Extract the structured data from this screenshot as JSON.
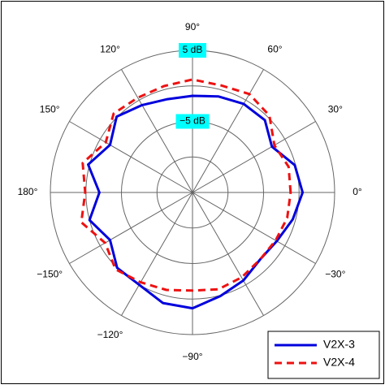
{
  "chart_data": {
    "type": "polar",
    "theta": [
      0,
      15,
      30,
      45,
      60,
      75,
      90,
      105,
      120,
      135,
      150,
      165,
      180,
      195,
      210,
      225,
      240,
      255,
      270,
      285,
      300,
      315,
      330,
      345
    ],
    "series": [
      {
        "name": "V2X-3",
        "color": "#0000dd",
        "dash": "solid",
        "values": [
          0.5,
          -0.1,
          -2.1,
          -0.6,
          -0.6,
          -1.0,
          -1.4,
          -1.4,
          -0.8,
          0.1,
          -1.6,
          0.2,
          -1.9,
          0.0,
          -1.6,
          0.0,
          0.0,
          1.1,
          1.3,
          0.1,
          -0.7,
          -1.6,
          -1.3,
          -0.4
        ]
      },
      {
        "name": "V2X-4",
        "color": "#ee1111",
        "dash": "dashed",
        "values": [
          -1.2,
          -1.0,
          -1.7,
          0.3,
          1.0,
          0.6,
          0.9,
          0.5,
          0.4,
          0.7,
          -0.9,
          1.0,
          0.1,
          1.2,
          -0.8,
          0.3,
          -0.4,
          -0.8,
          -1.2,
          -0.9,
          -1.2,
          -1.6,
          -1.5,
          -1.2
        ]
      }
    ],
    "rlim": [
      -15,
      5
    ],
    "rticks": [
      {
        "value": -10,
        "label": null
      },
      {
        "value": -5,
        "label": "−5 dB"
      },
      {
        "value": 0,
        "label": null
      },
      {
        "value": 5,
        "label": "5 dB"
      }
    ],
    "thetaticks": [
      {
        "value": 0,
        "label": "0°"
      },
      {
        "value": 30,
        "label": "30°"
      },
      {
        "value": 60,
        "label": "60°"
      },
      {
        "value": 90,
        "label": "90°"
      },
      {
        "value": 120,
        "label": "120°"
      },
      {
        "value": 150,
        "label": "150°"
      },
      {
        "value": 180,
        "label": "180°"
      },
      {
        "value": 210,
        "label": "−150°"
      },
      {
        "value": 240,
        "label": "−120°"
      },
      {
        "value": 270,
        "label": "−90°"
      },
      {
        "value": 300,
        "label": null
      },
      {
        "value": 330,
        "label": "−30°"
      }
    ],
    "grid": true,
    "legend": "lower right"
  }
}
